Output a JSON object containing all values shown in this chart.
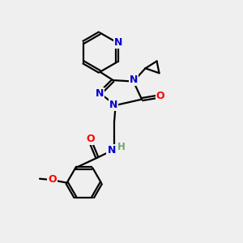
{
  "bg_color": "#efefef",
  "atom_colors": {
    "N": "#0000cc",
    "O": "#ff0000",
    "C": "#000000",
    "H": "#6fa86f"
  },
  "bond_color": "#000000",
  "line_width": 1.6,
  "figsize": [
    3.0,
    3.0
  ],
  "dpi": 100
}
